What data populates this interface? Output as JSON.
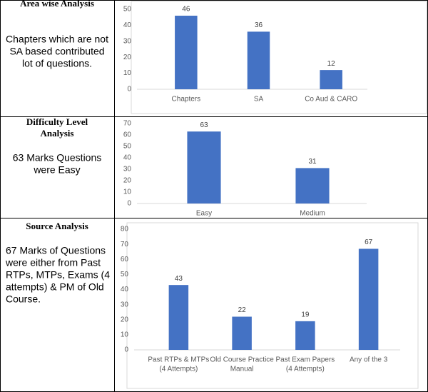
{
  "rows": [
    {
      "heading": "Area wise Analysis",
      "text": [
        "Chapters which are not",
        "SA based contributed",
        "lot of questions."
      ],
      "chart": {
        "type": "bar",
        "categories": [
          "Chapters",
          "SA",
          "Co Aud & CARO"
        ],
        "values": [
          46,
          36,
          12
        ],
        "color": "#4472c4",
        "ylim": [
          0,
          50
        ],
        "yticks": [
          0,
          10,
          20,
          30,
          40,
          50
        ]
      }
    },
    {
      "heading": [
        "Difficulty Level",
        "Analysis"
      ],
      "text": [
        "63 Marks Questions",
        "were Easy"
      ],
      "chart": {
        "type": "bar",
        "categories": [
          "Easy",
          "Medium"
        ],
        "values": [
          63,
          31
        ],
        "color": "#4472c4",
        "ylim": [
          0,
          70
        ],
        "yticks": [
          0,
          10,
          20,
          30,
          40,
          50,
          60,
          70
        ]
      }
    },
    {
      "heading": "Source Analysis",
      "text": [
        "67 Marks of Questions",
        "were either from Past",
        "RTPs, MTPs, Exams (4",
        "attempts) & PM of Old",
        "Course."
      ],
      "chart": {
        "type": "bar",
        "categories": [
          [
            "Past RTPs & MTPs",
            "(4 Attempts)"
          ],
          [
            "Old Course Practice",
            "Manual"
          ],
          [
            "Past Exam Papers",
            "(4 Attempts)"
          ],
          [
            "Any of the 3"
          ]
        ],
        "values": [
          43,
          22,
          19,
          67
        ],
        "color": "#4472c4",
        "ylim": [
          0,
          80
        ],
        "yticks": [
          0,
          10,
          20,
          30,
          40,
          50,
          60,
          70,
          80
        ]
      }
    }
  ]
}
